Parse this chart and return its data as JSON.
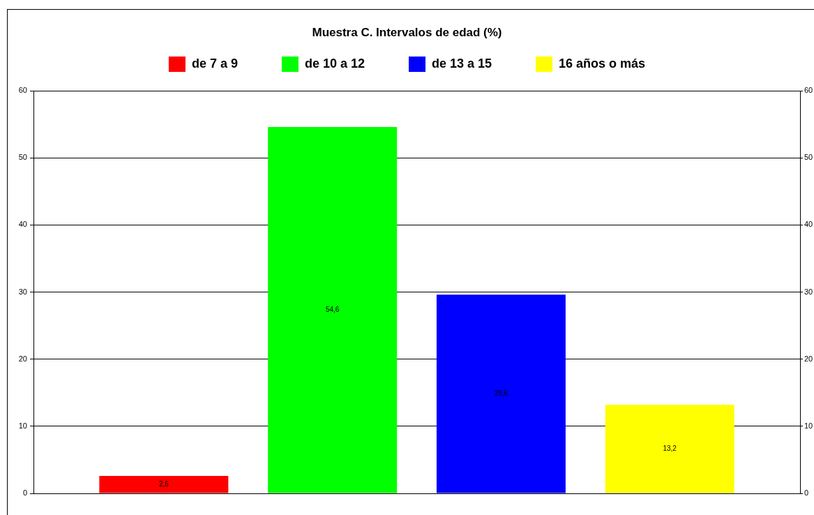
{
  "chart_data": {
    "type": "bar",
    "title": "Muestra C. Intervalos de edad (%)",
    "categories": [
      null
    ],
    "series": [
      {
        "name": "de 7 a 9",
        "color": "#ff0000",
        "values": [
          2.6
        ],
        "value_labels": [
          "2,6"
        ]
      },
      {
        "name": "de 10 a 12",
        "color": "#00ff00",
        "values": [
          54.6
        ],
        "value_labels": [
          "54,6"
        ]
      },
      {
        "name": "de 13 a 15",
        "color": "#0000ff",
        "values": [
          29.6
        ],
        "value_labels": [
          "29,6"
        ]
      },
      {
        "name": "16 años o más",
        "color": "#ffff00",
        "values": [
          13.2
        ],
        "value_labels": [
          "13,2"
        ]
      }
    ],
    "ylim": [
      0,
      60
    ],
    "yticks": [
      0,
      10,
      20,
      30,
      40,
      50,
      60
    ],
    "y2lim": [
      0,
      60
    ],
    "y2ticks": [
      0,
      10,
      20,
      30,
      40,
      50,
      60
    ],
    "grid": "y",
    "legend": "top"
  }
}
